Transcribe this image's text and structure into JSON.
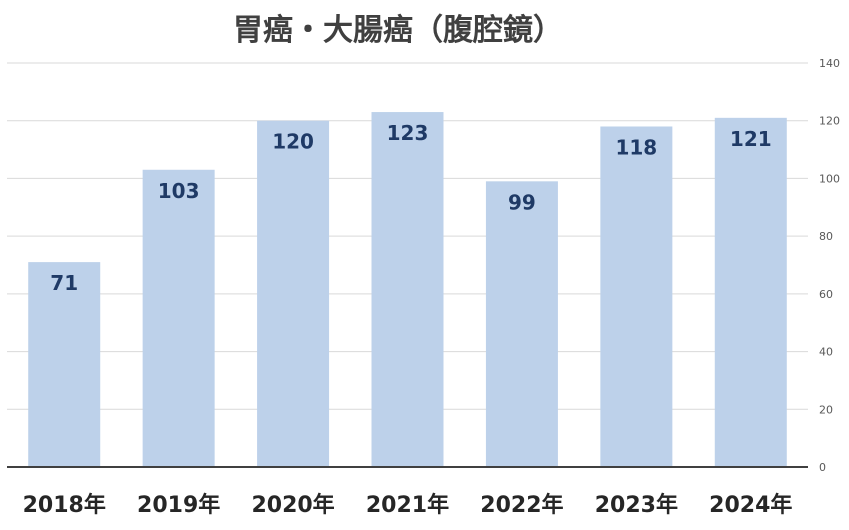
{
  "chart_data": {
    "type": "bar",
    "title": "胃癌・大腸癌（腹腔鏡）",
    "categories": [
      "2018年",
      "2019年",
      "2020年",
      "2021年",
      "2022年",
      "2023年",
      "2024年"
    ],
    "values": [
      71,
      103,
      120,
      123,
      99,
      118,
      121
    ],
    "y_ticks": [
      "0",
      "20",
      "40",
      "60",
      "80",
      "100",
      "120",
      "140"
    ],
    "ylim": [
      0,
      140
    ],
    "y_axis_position": "right",
    "grid": true,
    "legend": "none",
    "colors": {
      "bar": "#bdd1ea",
      "data_label": "#1f3a66",
      "grid": "#d9d9d9",
      "baseline": "#404040"
    }
  }
}
